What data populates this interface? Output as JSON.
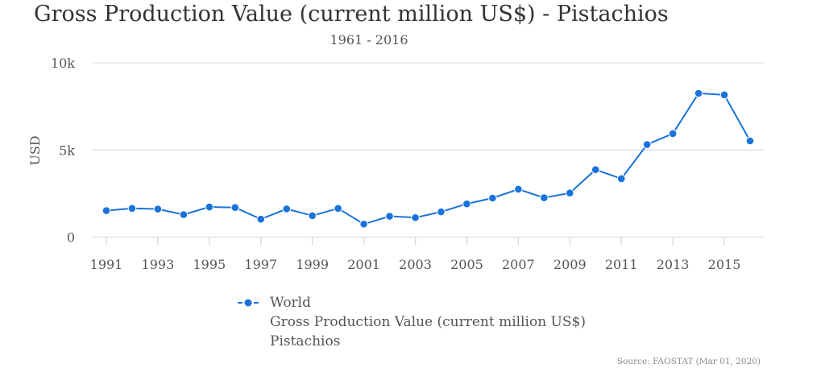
{
  "chart_data": {
    "type": "line",
    "title": "Gross Production Value (current million US$) - Pistachios",
    "subtitle": "1961 - 2016",
    "xlabel": "",
    "ylabel": "USD",
    "ylim": [
      0,
      10000
    ],
    "yticks": [
      "0",
      "5k",
      "10k"
    ],
    "xticks": [
      "1991",
      "1993",
      "1995",
      "1997",
      "1999",
      "2001",
      "2003",
      "2005",
      "2007",
      "2009",
      "2011",
      "2013",
      "2015"
    ],
    "grid": true,
    "legend_position": "bottom",
    "x": [
      1991,
      1992,
      1993,
      1994,
      1995,
      1996,
      1997,
      1998,
      1999,
      2000,
      2001,
      2002,
      2003,
      2004,
      2005,
      2006,
      2007,
      2008,
      2009,
      2010,
      2011,
      2012,
      2013,
      2014,
      2015,
      2016
    ],
    "series": [
      {
        "name": "World",
        "legend_lines": [
          "World",
          "Gross Production Value (current million US$)",
          "Pistachios"
        ],
        "color": "#1a73d9",
        "values": [
          1520,
          1650,
          1610,
          1290,
          1730,
          1700,
          1030,
          1620,
          1230,
          1650,
          750,
          1200,
          1120,
          1450,
          1910,
          2240,
          2750,
          2260,
          2530,
          3870,
          3350,
          5310,
          5940,
          8250,
          8160,
          5520
        ]
      }
    ],
    "source": "Source: FAOSTAT (Mar 01, 2020)"
  }
}
